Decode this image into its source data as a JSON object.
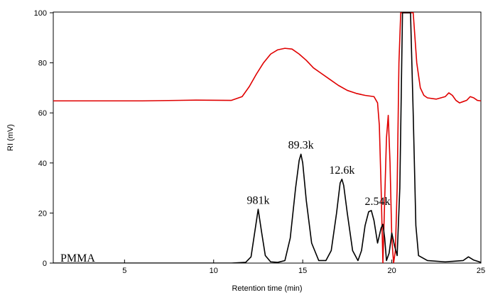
{
  "chart_data": {
    "type": "line",
    "xlabel": "Retention time (min)",
    "ylabel": "RI (mV)",
    "xlim": [
      1,
      25
    ],
    "ylim": [
      0,
      100
    ],
    "x_ticks": [
      5,
      10,
      15,
      20,
      25
    ],
    "y_ticks": [
      0,
      20,
      40,
      60,
      80,
      100
    ],
    "grid": false,
    "legend": "none",
    "colors": {
      "red_series": "#e00000",
      "black_series": "#000000"
    },
    "series_label": "PMMA",
    "annotations": [
      {
        "text": "981k",
        "x": 12.5,
        "y": 22
      },
      {
        "text": "89.3k",
        "x": 14.9,
        "y": 44
      },
      {
        "text": "12.6k",
        "x": 17.2,
        "y": 34
      },
      {
        "text": "2.54k",
        "x": 19.2,
        "y": 21.5
      }
    ],
    "series": [
      {
        "color": "#e00000",
        "x": [
          1,
          3,
          6,
          9,
          11,
          11.6,
          12.0,
          12.4,
          12.8,
          13.2,
          13.6,
          14.0,
          14.4,
          14.8,
          15.2,
          15.6,
          16.0,
          16.5,
          17.0,
          17.5,
          18.0,
          18.5,
          19.0,
          19.2,
          19.3,
          19.4,
          19.5,
          19.6,
          19.7,
          19.8,
          19.9,
          20.0,
          20.1,
          20.2,
          20.3,
          20.4,
          20.5,
          20.6,
          20.8,
          21.0,
          21.2,
          21.4,
          21.6,
          21.8,
          22.0,
          22.5,
          23.0,
          23.2,
          23.4,
          23.6,
          23.8,
          24.0,
          24.2,
          24.4,
          24.6,
          24.8,
          25.0
        ],
        "y": [
          64.8,
          64.8,
          64.8,
          65.1,
          65.0,
          66.5,
          70.5,
          75.5,
          80.0,
          83.5,
          85.2,
          85.8,
          85.5,
          83.5,
          81.0,
          78.0,
          76.0,
          73.5,
          71.0,
          69.0,
          67.8,
          67.0,
          66.5,
          64.0,
          55.0,
          30.0,
          0.0,
          25.0,
          50.0,
          59.0,
          40.0,
          10.0,
          0.0,
          5.0,
          30.0,
          80.0,
          100.0,
          100.0,
          100.0,
          100.0,
          100.0,
          80.0,
          70.0,
          67.0,
          66.0,
          65.5,
          66.5,
          68.0,
          67.0,
          65.0,
          64.0,
          64.5,
          65.0,
          66.5,
          66.0,
          65.0,
          64.8
        ]
      },
      {
        "color": "#000000",
        "x": [
          1,
          4,
          8,
          11,
          11.8,
          12.1,
          12.3,
          12.5,
          12.7,
          12.9,
          13.2,
          13.6,
          14.0,
          14.3,
          14.6,
          14.8,
          14.9,
          15.0,
          15.2,
          15.5,
          15.9,
          16.3,
          16.6,
          16.9,
          17.1,
          17.2,
          17.3,
          17.5,
          17.8,
          18.1,
          18.3,
          18.5,
          18.7,
          18.85,
          19.0,
          19.2,
          19.4,
          19.5,
          19.6,
          19.7,
          19.85,
          20.0,
          20.15,
          20.3,
          20.45,
          20.6,
          20.75,
          20.9,
          21.05,
          21.2,
          21.35,
          21.5,
          22.0,
          23.0,
          24.0,
          24.3,
          24.6,
          25.0
        ],
        "y": [
          0,
          0,
          0,
          0,
          0.3,
          2.5,
          12.0,
          21.5,
          12.0,
          3.0,
          0.5,
          0.3,
          1.0,
          10.0,
          30.0,
          41.0,
          43.5,
          40.0,
          25.0,
          8.0,
          1.0,
          1.0,
          5.0,
          20.0,
          32.0,
          33.5,
          31.0,
          20.0,
          5.0,
          1.0,
          5.0,
          15.0,
          20.5,
          21.0,
          17.0,
          8.0,
          14.0,
          15.5,
          10.0,
          1.0,
          4.0,
          12.0,
          7.0,
          3.0,
          30.0,
          100.0,
          100.0,
          100.0,
          100.0,
          60.0,
          15.0,
          3.0,
          1.0,
          0.5,
          1.0,
          2.5,
          1.2,
          0.3
        ]
      }
    ]
  }
}
